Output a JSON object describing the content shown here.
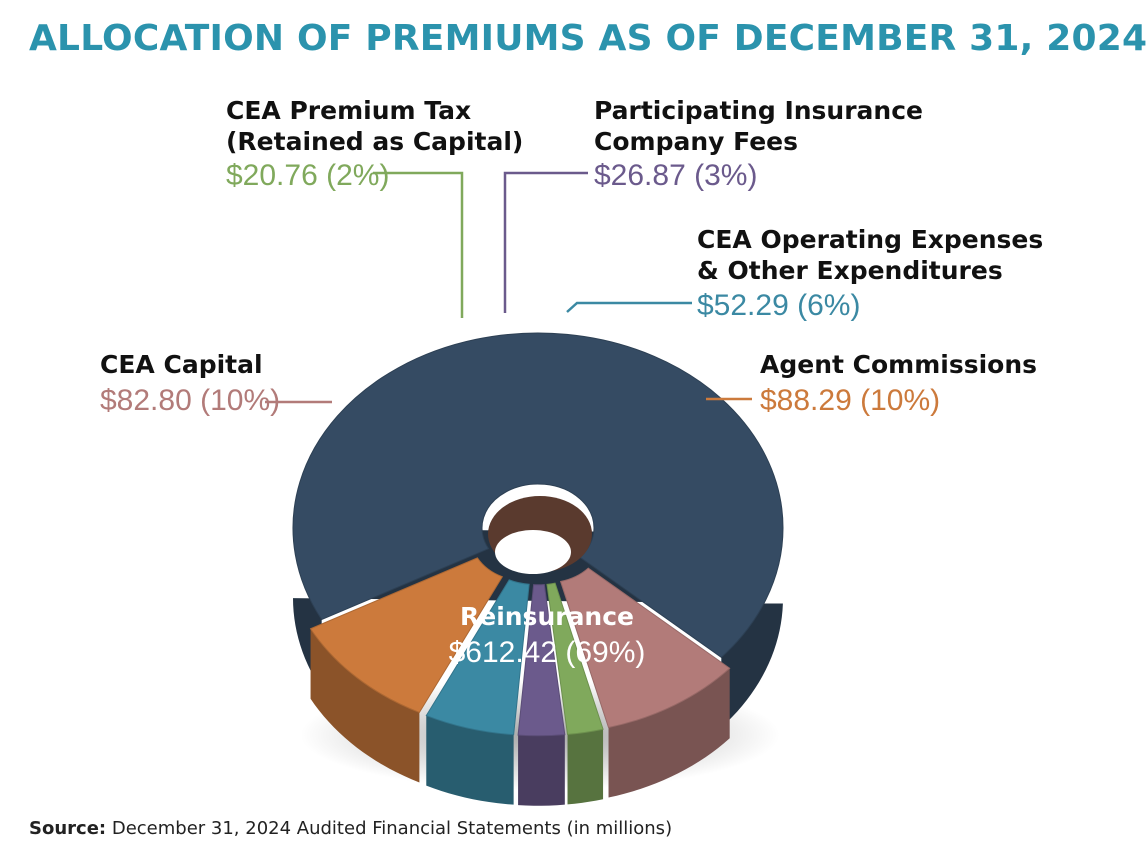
{
  "title": "ALLOCATION OF PREMIUMS AS OF DECEMBER 31, 2024",
  "source": {
    "label": "Source:",
    "text": "December 31, 2024 Audited Financial Statements (in millions)"
  },
  "chart_data": {
    "type": "pie",
    "title": "ALLOCATION OF PREMIUMS AS OF DECEMBER 31, 2024",
    "unit": "millions of dollars",
    "slices": [
      {
        "label": "Reinsurance",
        "value": 612.42,
        "value_label": "$612.42 (69%)",
        "color": "#354b63"
      },
      {
        "label": "CEA Capital",
        "value": 82.8,
        "value_label": "$82.80 (10%)",
        "color": "#b27b79"
      },
      {
        "label": "CEA Premium Tax (Retained as Capital)",
        "value": 20.76,
        "value_label": "$20.76 (2%)",
        "color": "#80a95c"
      },
      {
        "label": "Participating Insurance Company Fees",
        "value": 26.87,
        "value_label": "$26.87 (3%)",
        "color": "#6b5a8c"
      },
      {
        "label": "CEA Operating Expenses & Other Expenditures",
        "value": 52.29,
        "value_label": "$52.29 (6%)",
        "color": "#3b89a3"
      },
      {
        "label": "Agent Commissions",
        "value": 88.29,
        "value_label": "$88.29 (10%)",
        "color": "#cc7a3c"
      }
    ]
  },
  "labels": {
    "premium_tax": {
      "line1": "CEA Premium Tax",
      "line2": "(Retained as Capital)",
      "value": "$20.76 (2%)"
    },
    "insurance_fees": {
      "line1": "Participating Insurance",
      "line2": "Company Fees",
      "value": "$26.87 (3%)"
    },
    "operating": {
      "line1": "CEA Operating Expenses",
      "line2": "& Other Expenditures",
      "value": "$52.29 (6%)"
    },
    "capital": {
      "line1": "CEA Capital",
      "value": "$82.80 (10%)"
    },
    "commissions": {
      "line1": "Agent Commissions",
      "value": "$88.29 (10%)"
    },
    "reinsurance": {
      "line1": "Reinsurance",
      "value": "$612.42 (69%)"
    }
  }
}
